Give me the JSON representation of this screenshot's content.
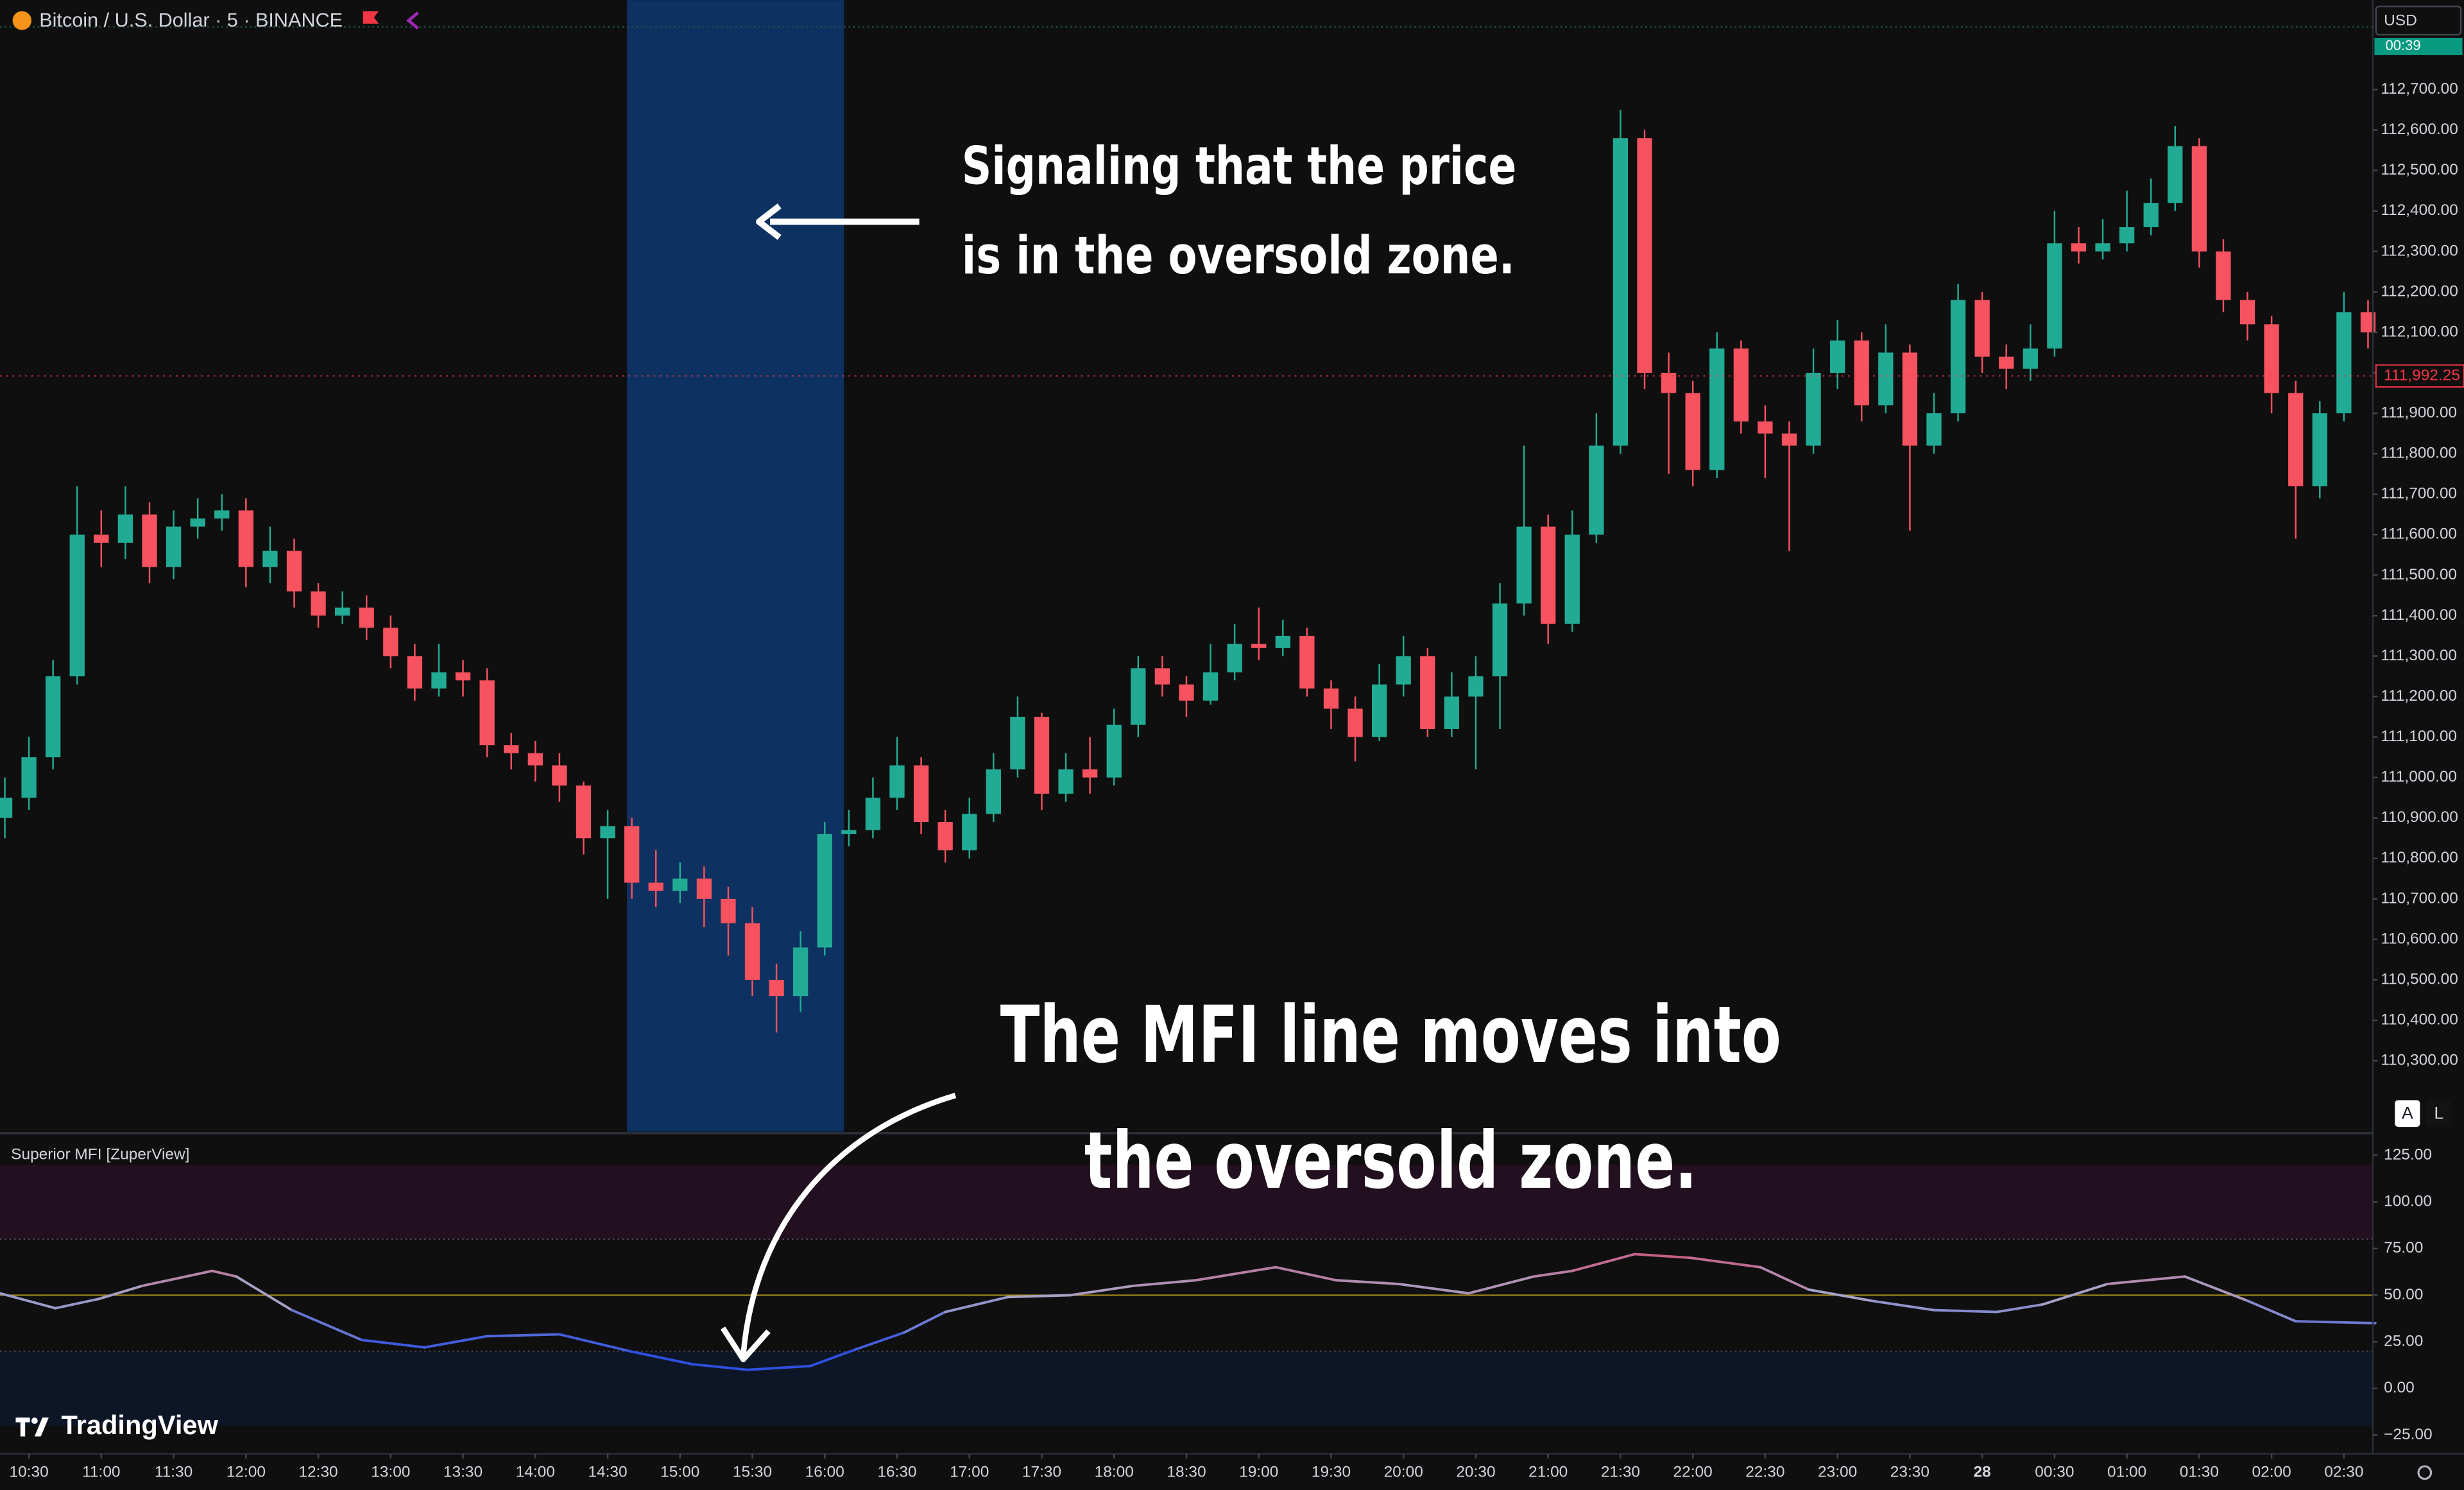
{
  "header": {
    "symbol": "Bitcoin / U.S. Dollar · 5 · BINANCE",
    "currency": "USD",
    "countdown": "00:39",
    "scale_buttons": [
      "A",
      "L"
    ]
  },
  "annotations": {
    "price_note": [
      "Signaling that the price",
      "is in the oversold zone."
    ],
    "mfi_note": [
      "The MFI line moves into",
      "the oversold zone."
    ]
  },
  "watermark": "TradingView",
  "chart_data": [
    {
      "type": "candlestick",
      "title": "Bitcoin / U.S. Dollar · 5 · BINANCE",
      "up_color": "#22ab94",
      "down_color": "#f7525f",
      "highlight": [
        248,
        338
      ],
      "highlight_color": "#0d3160",
      "last_price": {
        "value": 111992.25,
        "label": "111,992.25"
      },
      "x": [
        -10,
        0,
        10,
        20,
        30,
        40,
        50,
        60,
        70,
        80,
        90,
        100,
        110,
        120,
        130,
        140,
        150,
        160,
        170,
        180,
        190,
        200,
        210,
        220,
        230,
        240,
        250,
        260,
        270,
        280,
        290,
        300,
        310,
        320,
        330,
        340,
        350,
        360,
        370,
        380,
        390,
        400,
        410,
        420,
        430,
        440,
        450,
        460,
        470,
        480,
        490,
        500,
        510,
        520,
        530,
        540,
        550,
        560,
        570,
        580,
        590,
        600,
        610,
        620,
        630,
        640,
        650,
        660,
        670,
        680,
        690,
        700,
        710,
        720,
        730,
        740,
        750,
        760,
        770,
        780,
        790,
        800,
        810,
        820,
        830,
        840,
        850,
        860,
        870,
        880,
        890,
        900,
        910,
        920,
        930,
        940,
        950,
        960,
        970
      ],
      "open": [
        110900,
        110950,
        111050,
        111250,
        111600,
        111580,
        111650,
        111520,
        111620,
        111640,
        111660,
        111520,
        111560,
        111460,
        111400,
        111420,
        111370,
        111300,
        111220,
        111260,
        111240,
        111080,
        111060,
        111030,
        110980,
        110850,
        110880,
        110740,
        110720,
        110750,
        110700,
        110640,
        110500,
        110460,
        110580,
        110860,
        110870,
        110950,
        111030,
        110890,
        110820,
        110910,
        111020,
        111150,
        110960,
        111020,
        111000,
        111130,
        111270,
        111230,
        111190,
        111260,
        111330,
        111320,
        111350,
        111220,
        111170,
        111100,
        111230,
        111300,
        111120,
        111200,
        111250,
        111430,
        111620,
        111380,
        111600,
        111820,
        112580,
        112000,
        111950,
        111760,
        112060,
        111880,
        111850,
        111820,
        112000,
        112080,
        111920,
        112050,
        111820,
        111900,
        112180,
        112040,
        112010,
        112060,
        112320,
        112300,
        112320,
        112360,
        112420,
        112560,
        112300,
        112180,
        112120,
        111950,
        111720,
        111900,
        112150
      ],
      "high": [
        111000,
        111100,
        111290,
        111720,
        111660,
        111720,
        111680,
        111660,
        111690,
        111700,
        111690,
        111620,
        111590,
        111480,
        111460,
        111450,
        111400,
        111330,
        111330,
        111290,
        111270,
        111110,
        111090,
        111060,
        110990,
        110920,
        110900,
        110820,
        110790,
        110780,
        110730,
        110680,
        110540,
        110620,
        110890,
        110920,
        111000,
        111100,
        111050,
        110920,
        110950,
        111060,
        111200,
        111160,
        111060,
        111100,
        111170,
        111300,
        111300,
        111250,
        111330,
        111380,
        111420,
        111390,
        111370,
        111240,
        111200,
        111280,
        111350,
        111320,
        111260,
        111300,
        111480,
        111820,
        111650,
        111660,
        111900,
        112650,
        112600,
        112050,
        111980,
        112100,
        112080,
        111920,
        111880,
        112060,
        112130,
        112100,
        112120,
        112070,
        111950,
        112220,
        112200,
        112070,
        112120,
        112400,
        112360,
        112380,
        112450,
        112480,
        112610,
        112580,
        112330,
        112200,
        112140,
        111980,
        111930,
        112200,
        112180
      ],
      "low": [
        110850,
        110920,
        111020,
        111230,
        111520,
        111540,
        111480,
        111490,
        111590,
        111610,
        111470,
        111480,
        111420,
        111370,
        111380,
        111340,
        111270,
        111190,
        111200,
        111200,
        111050,
        111020,
        110990,
        110940,
        110810,
        110700,
        110700,
        110680,
        110690,
        110630,
        110560,
        110460,
        110370,
        110420,
        110560,
        110830,
        110850,
        110920,
        110860,
        110790,
        110800,
        110890,
        111000,
        110920,
        110940,
        110960,
        110980,
        111100,
        111200,
        111150,
        111180,
        111240,
        111290,
        111300,
        111200,
        111120,
        111040,
        111090,
        111200,
        111100,
        111100,
        111020,
        111120,
        111400,
        111330,
        111360,
        111580,
        111800,
        111960,
        111750,
        111720,
        111740,
        111850,
        111740,
        111560,
        111800,
        111960,
        111880,
        111900,
        111610,
        111800,
        111880,
        112000,
        111960,
        111980,
        112040,
        112270,
        112280,
        112300,
        112340,
        112400,
        112260,
        112150,
        112080,
        111900,
        111590,
        111690,
        111880,
        112060
      ],
      "close": [
        110950,
        111050,
        111250,
        111600,
        111580,
        111650,
        111520,
        111620,
        111640,
        111660,
        111520,
        111560,
        111460,
        111400,
        111420,
        111370,
        111300,
        111220,
        111260,
        111240,
        111080,
        111060,
        111030,
        110980,
        110850,
        110880,
        110740,
        110720,
        110750,
        110700,
        110640,
        110500,
        110460,
        110580,
        110860,
        110870,
        110950,
        111030,
        110890,
        110820,
        110910,
        111020,
        111150,
        110960,
        111020,
        111000,
        111130,
        111270,
        111230,
        111190,
        111260,
        111330,
        111320,
        111350,
        111220,
        111170,
        111100,
        111230,
        111300,
        111120,
        111200,
        111250,
        111430,
        111620,
        111380,
        111600,
        111820,
        112580,
        112000,
        111950,
        111760,
        112060,
        111880,
        111850,
        111820,
        112000,
        112080,
        111920,
        112050,
        111820,
        111900,
        112180,
        112040,
        112010,
        112060,
        112320,
        112300,
        112320,
        112360,
        112420,
        112560,
        112300,
        112180,
        112120,
        111950,
        111720,
        111900,
        112150,
        112100
      ],
      "xlim": [
        -12,
        972
      ],
      "xticks": [
        {
          "value": 0,
          "label": "10:30"
        },
        {
          "value": 30,
          "label": "11:00"
        },
        {
          "value": 60,
          "label": "11:30"
        },
        {
          "value": 90,
          "label": "12:00"
        },
        {
          "value": 120,
          "label": "12:30"
        },
        {
          "value": 150,
          "label": "13:00"
        },
        {
          "value": 180,
          "label": "13:30"
        },
        {
          "value": 210,
          "label": "14:00"
        },
        {
          "value": 240,
          "label": "14:30"
        },
        {
          "value": 270,
          "label": "15:00"
        },
        {
          "value": 300,
          "label": "15:30"
        },
        {
          "value": 330,
          "label": "16:00"
        },
        {
          "value": 360,
          "label": "16:30"
        },
        {
          "value": 390,
          "label": "17:00"
        },
        {
          "value": 420,
          "label": "17:30"
        },
        {
          "value": 450,
          "label": "18:00"
        },
        {
          "value": 480,
          "label": "18:30"
        },
        {
          "value": 510,
          "label": "19:00"
        },
        {
          "value": 540,
          "label": "19:30"
        },
        {
          "value": 570,
          "label": "20:00"
        },
        {
          "value": 600,
          "label": "20:30"
        },
        {
          "value": 630,
          "label": "21:00"
        },
        {
          "value": 660,
          "label": "21:30"
        },
        {
          "value": 690,
          "label": "22:00"
        },
        {
          "value": 720,
          "label": "22:30"
        },
        {
          "value": 750,
          "label": "23:00"
        },
        {
          "value": 780,
          "label": "23:30"
        },
        {
          "value": 810,
          "label": "28"
        },
        {
          "value": 840,
          "label": "00:30"
        },
        {
          "value": 870,
          "label": "01:00"
        },
        {
          "value": 900,
          "label": "01:30"
        },
        {
          "value": 930,
          "label": "02:00"
        },
        {
          "value": 960,
          "label": "02:30"
        }
      ],
      "ylim": [
        110125,
        112921
      ],
      "yticks": [
        {
          "value": 110300,
          "label": "110,300.00"
        },
        {
          "value": 110400,
          "label": "110,400.00"
        },
        {
          "value": 110500,
          "label": "110,500.00"
        },
        {
          "value": 110600,
          "label": "110,600.00"
        },
        {
          "value": 110700,
          "label": "110,700.00"
        },
        {
          "value": 110800,
          "label": "110,800.00"
        },
        {
          "value": 110900,
          "label": "110,900.00"
        },
        {
          "value": 111000,
          "label": "111,000.00"
        },
        {
          "value": 111100,
          "label": "111,100.00"
        },
        {
          "value": 111200,
          "label": "111,200.00"
        },
        {
          "value": 111300,
          "label": "111,300.00"
        },
        {
          "value": 111400,
          "label": "111,400.00"
        },
        {
          "value": 111500,
          "label": "111,500.00"
        },
        {
          "value": 111600,
          "label": "111,600.00"
        },
        {
          "value": 111700,
          "label": "111,700.00"
        },
        {
          "value": 111800,
          "label": "111,800.00"
        },
        {
          "value": 111900,
          "label": "111,900.00"
        },
        {
          "value": 112000,
          "label": "112,000.00"
        },
        {
          "value": 112100,
          "label": "112,100.00"
        },
        {
          "value": 112200,
          "label": "112,200.00"
        },
        {
          "value": 112300,
          "label": "112,300.00"
        },
        {
          "value": 112400,
          "label": "112,400.00"
        },
        {
          "value": 112500,
          "label": "112,500.00"
        },
        {
          "value": 112600,
          "label": "112,600.00"
        },
        {
          "value": 112700,
          "label": "112,700.00"
        }
      ],
      "grid": false
    },
    {
      "type": "line",
      "title": "Superior MFI [ZuperView]",
      "x": [
        -12,
        11,
        29,
        47,
        76,
        86,
        109,
        138,
        164,
        190,
        220,
        249,
        275,
        298,
        324,
        343,
        363,
        380,
        406,
        432,
        458,
        484,
        517,
        542,
        568,
        597,
        624,
        640,
        666,
        689,
        718,
        738,
        764,
        790,
        816,
        835,
        862,
        894,
        920,
        940,
        973
      ],
      "values": [
        51,
        43,
        48,
        55,
        63,
        60,
        42,
        26,
        22,
        28,
        29,
        20,
        13,
        10,
        12,
        21,
        30,
        41,
        49,
        50,
        55,
        58,
        65,
        58,
        56,
        51,
        60,
        63,
        72,
        70,
        65,
        53,
        47,
        42,
        41,
        45,
        56,
        60,
        47,
        36,
        35
      ],
      "color_low": "#2f4fe0",
      "color_mid": "#a7a3c6",
      "color_high": "#d2446c",
      "overbought": [
        80,
        120
      ],
      "overbought_color": "#221020",
      "oversold": [
        -20,
        20
      ],
      "oversold_color": "#0d1626",
      "midline": 50,
      "midline_color": "#a98c1e",
      "xlim": [
        -12,
        972
      ],
      "ylim": [
        -35,
        136
      ],
      "yticks": [
        {
          "value": 125,
          "label": "125.00"
        },
        {
          "value": 100,
          "label": "100.00"
        },
        {
          "value": 75,
          "label": "75.00"
        },
        {
          "value": 50,
          "label": "50.00"
        },
        {
          "value": 25,
          "label": "25.00"
        },
        {
          "value": 0,
          "label": "0.00"
        },
        {
          "value": -25,
          "label": "−25.00"
        }
      ],
      "grid": false
    }
  ]
}
